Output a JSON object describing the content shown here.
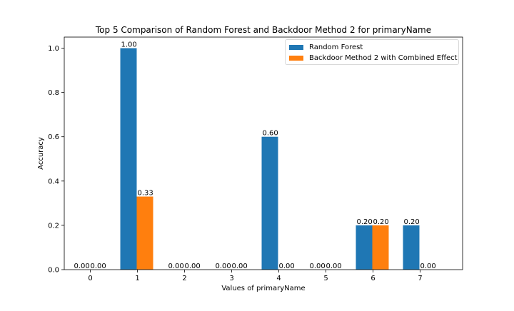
{
  "chart_data": {
    "type": "bar",
    "title": "Top 5 Comparison of Random Forest and Backdoor Method 2 for primaryName",
    "xlabel": "Values of primaryName",
    "ylabel": "Accuracy",
    "categories": [
      "0",
      "1",
      "2",
      "3",
      "4",
      "5",
      "6",
      "7"
    ],
    "ylim": [
      0,
      1.05
    ],
    "yticks": [
      0.0,
      0.2,
      0.4,
      0.6,
      0.8,
      1.0
    ],
    "ytick_labels": [
      "0.0",
      "0.2",
      "0.4",
      "0.6",
      "0.8",
      "1.0"
    ],
    "grid": false,
    "legend_position": "top-right",
    "series": [
      {
        "name": "Random Forest",
        "color": "#1f77b4",
        "values": [
          0.0,
          1.0,
          0.0,
          0.0,
          0.6,
          0.0,
          0.2,
          0.2
        ],
        "labels": [
          "0.00",
          "1.00",
          "0.00",
          "0.00",
          "0.60",
          "0.00",
          "0.20",
          "0.20"
        ]
      },
      {
        "name": "Backdoor Method 2 with Combined Effect",
        "color": "#ff7f0e",
        "values": [
          0.0,
          0.33,
          0.0,
          0.0,
          0.0,
          0.0,
          0.2,
          0.0
        ],
        "labels": [
          "0.00",
          "0.33",
          "0.00",
          "0.00",
          "0.00",
          "0.00",
          "0.20",
          "0.00"
        ]
      }
    ]
  }
}
